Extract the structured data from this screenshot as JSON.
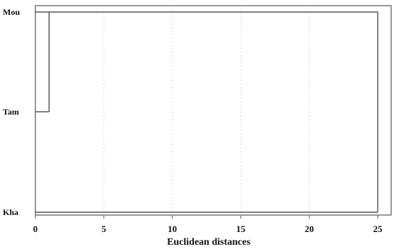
{
  "chart_data": {
    "type": "dendrogram",
    "xlabel": "Euclidean distances",
    "xlim": [
      0,
      25
    ],
    "x_ticks": [
      0,
      5,
      10,
      15,
      20,
      25
    ],
    "grid": true,
    "leaves": [
      "Mou",
      "Tam",
      "Kha"
    ],
    "merges": [
      {
        "children": [
          "Mou",
          "Tam"
        ],
        "distance": 1
      },
      {
        "children": [
          "Mou-Tam",
          "Kha"
        ],
        "distance": 25
      }
    ]
  }
}
